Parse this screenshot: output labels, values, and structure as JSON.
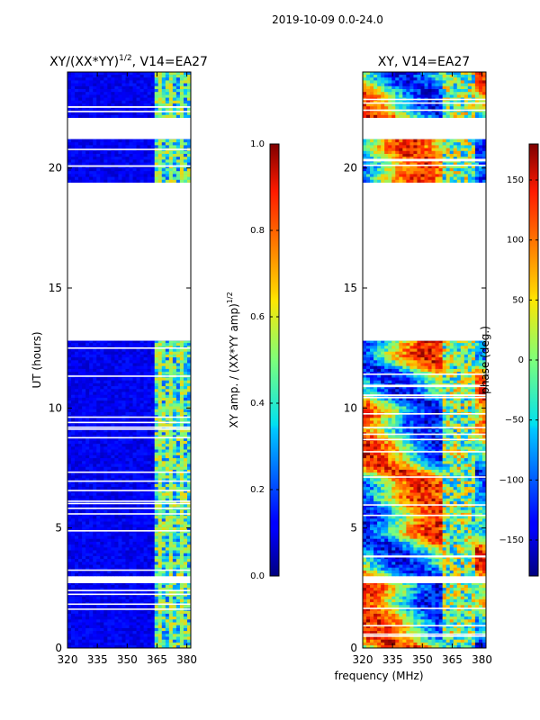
{
  "suptitle": "2019-10-09 0.0-24.0",
  "chart_data": [
    {
      "type": "heatmap",
      "title_main": "XY/(XX*YY)",
      "title_exp": "1/2",
      "title_tail": ", V14=EA27",
      "xlabel": "",
      "ylabel": "UT (hours)",
      "xlim": [
        320,
        382
      ],
      "ylim": [
        0,
        24
      ],
      "x_ticks": [
        320,
        335,
        350,
        365,
        380
      ],
      "y_ticks": [
        0,
        5,
        10,
        15,
        20
      ],
      "data_intervals_hours": [
        [
          0.0,
          2.7
        ],
        [
          3.0,
          12.8
        ],
        [
          19.4,
          21.2
        ],
        [
          22.1,
          24.0
        ]
      ],
      "colorbar": {
        "label_main": "XY amp. / (XX*YY amp)",
        "label_exp": "1/2",
        "range": [
          0.0,
          1.0
        ],
        "ticks": [
          "0.0",
          "0.2",
          "0.4",
          "0.6",
          "0.8",
          "1.0"
        ],
        "tick_values": [
          0.0,
          0.2,
          0.4,
          0.6,
          0.8,
          1.0
        ]
      }
    },
    {
      "type": "heatmap",
      "title_main": "XY, V14=EA27",
      "xlabel": "frequency (MHz)",
      "ylabel": "",
      "xlim": [
        320,
        382
      ],
      "ylim": [
        0,
        24
      ],
      "x_ticks": [
        320,
        335,
        350,
        365,
        380
      ],
      "y_ticks": [
        0,
        5,
        10,
        15,
        20
      ],
      "data_intervals_hours": [
        [
          0.0,
          2.7
        ],
        [
          3.0,
          12.8
        ],
        [
          19.4,
          21.2
        ],
        [
          22.1,
          24.0
        ]
      ],
      "colorbar": {
        "label": "phase (deg.)",
        "range": [
          -180,
          180
        ],
        "ticks": [
          "150",
          "100",
          "50",
          "0",
          "−50",
          "−100",
          "−150"
        ],
        "tick_values": [
          150,
          100,
          50,
          0,
          -50,
          -100,
          -150
        ]
      }
    }
  ]
}
